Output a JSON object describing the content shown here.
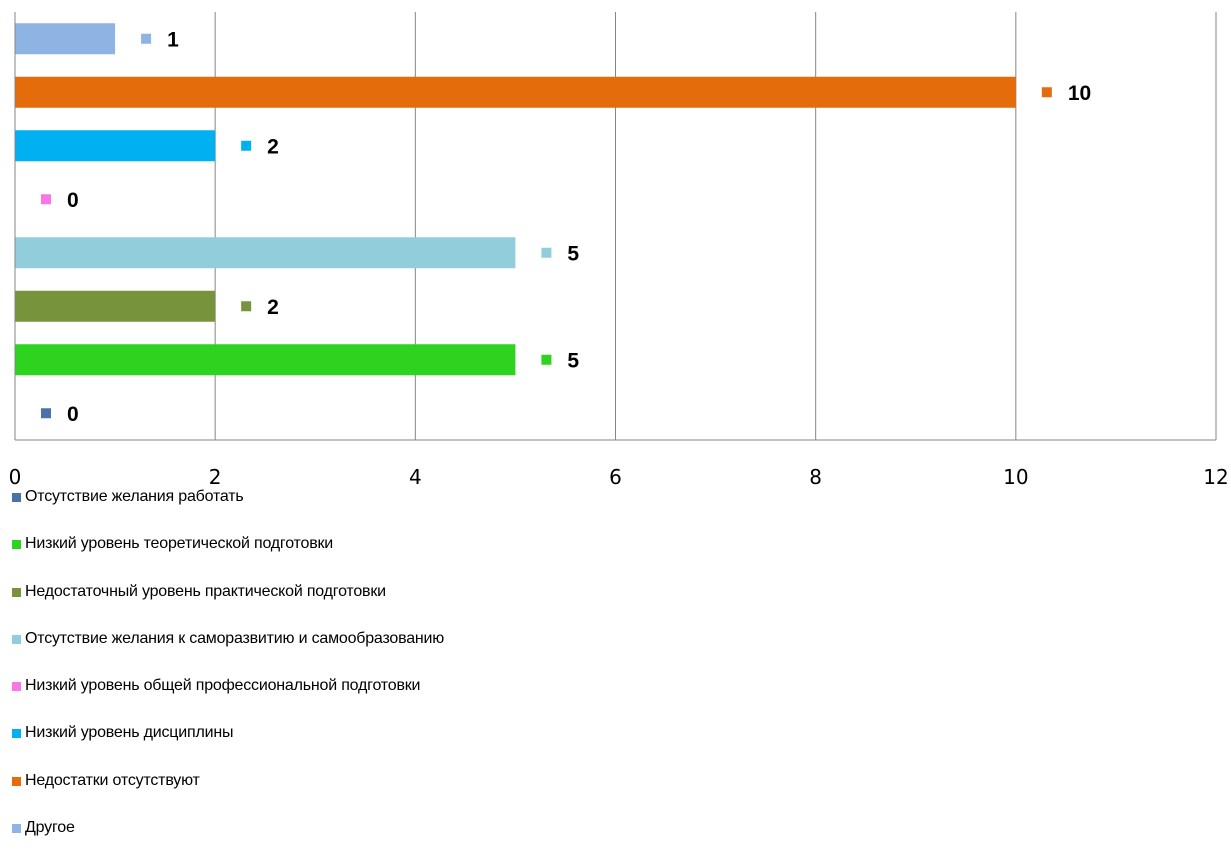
{
  "chart_data": {
    "type": "bar",
    "orientation": "horizontal",
    "xlim": [
      0,
      12
    ],
    "x_ticks": [
      0,
      2,
      4,
      6,
      8,
      10,
      12
    ],
    "grid": "vertical",
    "legend_position": "bottom",
    "series": [
      {
        "name": "Отсутствие желания работать",
        "value": 0,
        "color": "#4A72A8"
      },
      {
        "name": "Низкий уровень теоретической подготовки",
        "value": 5,
        "color": "#2ED31F"
      },
      {
        "name": "Недостаточный уровень практической подготовки",
        "value": 2,
        "color": "#77933C"
      },
      {
        "name": "Отсутствие желания к саморазвитию и самообразованию",
        "value": 5,
        "color": "#92CDDC"
      },
      {
        "name": "Низкий уровень общей профессиональной подготовки",
        "value": 0,
        "color": "#F777E6"
      },
      {
        "name": "Низкий уровень дисциплины",
        "value": 2,
        "color": "#00B0F0"
      },
      {
        "name": "Недостатки отсутствуют",
        "value": 10,
        "color": "#E46C0A"
      },
      {
        "name": "Другое",
        "value": 1,
        "color": "#8EB4E3"
      }
    ]
  }
}
